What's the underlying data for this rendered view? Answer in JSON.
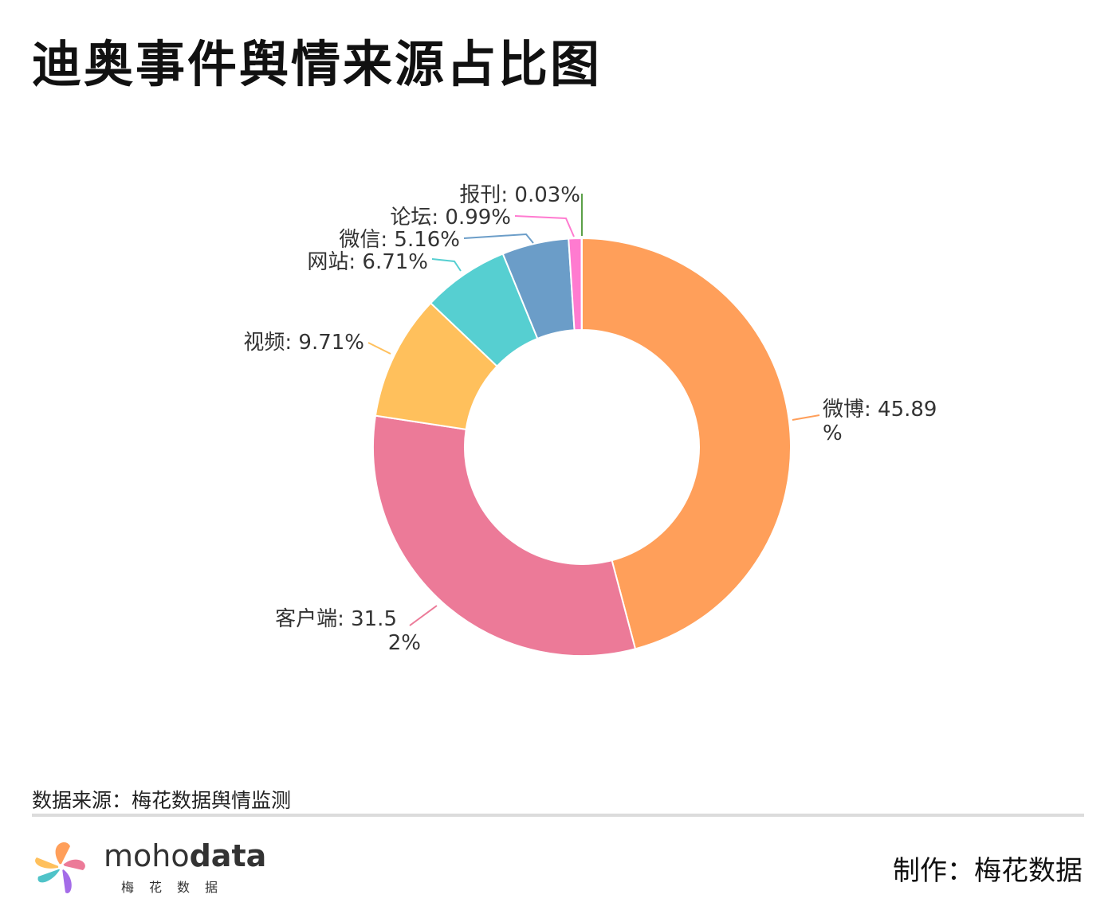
{
  "title": "迪奥事件舆情来源占比图",
  "chart_data": {
    "type": "pie",
    "variant": "donut",
    "title": "迪奥事件舆情来源占比图",
    "unit": "%",
    "slices": [
      {
        "name": "微博",
        "value": 45.89,
        "label": "微博: 45.89%",
        "color": "#FF9F5A"
      },
      {
        "name": "客户端",
        "value": 31.52,
        "label": "客户端: 31.52%",
        "color": "#EC7A98"
      },
      {
        "name": "视频",
        "value": 9.71,
        "label": "视频: 9.71%",
        "color": "#FFC05C"
      },
      {
        "name": "网站",
        "value": 6.71,
        "label": "网站: 6.71%",
        "color": "#56CFD1"
      },
      {
        "name": "微信",
        "value": 5.16,
        "label": "微信: 5.16%",
        "color": "#6B9DC8"
      },
      {
        "name": "论坛",
        "value": 0.99,
        "label": "论坛: 0.99%",
        "color": "#FF7BD0"
      },
      {
        "name": "报刊",
        "value": 0.03,
        "label": "报刊: 0.03%",
        "color": "#5BA048"
      }
    ]
  },
  "footer": {
    "source": "数据来源：梅花数据舆情监测",
    "maker": "制作：梅花数据",
    "logo_text_light": "moho",
    "logo_text_bold": "data",
    "logo_sub": "梅花数据"
  }
}
